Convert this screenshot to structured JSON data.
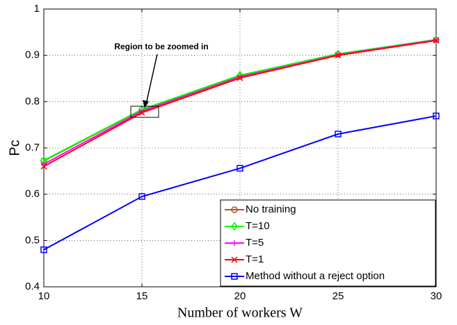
{
  "chart_data": {
    "type": "line",
    "xlabel": "Number of workers W",
    "ylabel": "Pc",
    "annotation": "Region to be zoomed in",
    "x": [
      10,
      15,
      20,
      25,
      30
    ],
    "xlim": [
      10,
      30
    ],
    "xticks": [
      10,
      15,
      20,
      25,
      30
    ],
    "ylim": [
      0.4,
      1
    ],
    "yticks": [
      0.4,
      0.5,
      0.6,
      0.7,
      0.8,
      0.9,
      1
    ],
    "grid": true,
    "legend": "lower right",
    "series": [
      {
        "name": "No training",
        "color": "#c0501e",
        "marker": "o",
        "values": [
          0.672,
          0.782,
          0.855,
          0.902,
          0.933
        ]
      },
      {
        "name": "T=10",
        "color": "#00ff00",
        "marker": "d",
        "values": [
          0.673,
          0.783,
          0.857,
          0.903,
          0.934
        ]
      },
      {
        "name": "T=5",
        "color": "#ff00ff",
        "marker": "+",
        "values": [
          0.665,
          0.779,
          0.853,
          0.901,
          0.933
        ]
      },
      {
        "name": "T=1",
        "color": "#ff0000",
        "marker": "x",
        "values": [
          0.66,
          0.776,
          0.851,
          0.9,
          0.932
        ]
      },
      {
        "name": "Method without a reject option",
        "color": "#0000ff",
        "marker": "s",
        "values": [
          0.48,
          0.595,
          0.656,
          0.73,
          0.769
        ]
      }
    ]
  }
}
